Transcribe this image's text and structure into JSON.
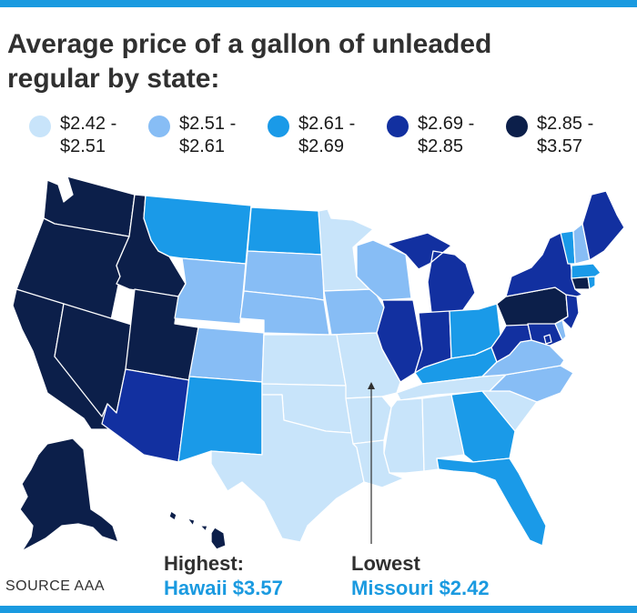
{
  "title": "Average price of a gallon of unleaded regular by state:",
  "legend": [
    {
      "label": "$2.42 - $2.51",
      "color": "#c8e4fa"
    },
    {
      "label": "$2.51 - $2.61",
      "color": "#87bdf5"
    },
    {
      "label": "$2.61 - $2.69",
      "color": "#1a9ae8"
    },
    {
      "label": "$2.69 - $2.85",
      "color": "#1230a0"
    },
    {
      "label": "$2.85 - $3.57",
      "color": "#0c1f4a"
    }
  ],
  "callouts": {
    "highest_label": "Highest:",
    "highest_value": "Hawaii $3.57",
    "lowest_label": "Lowest",
    "lowest_value": "Missouri $2.42"
  },
  "source": "SOURCE AAA",
  "colors": {
    "accent": "#1a9ae0",
    "text": "#303030",
    "border": "#ffffff"
  },
  "state_brackets": {
    "WA": 4,
    "OR": 4,
    "CA": 4,
    "NV": 4,
    "ID": 4,
    "UT": 4,
    "AK": 4,
    "HI": 4,
    "PA": 4,
    "CT": 4,
    "AZ": 3,
    "IL": 3,
    "IN": 3,
    "MI": 3,
    "WV": 3,
    "NY": 3,
    "NJ": 3,
    "MD": 3,
    "ME": 3,
    "DC": 3,
    "MT": 2,
    "ND": 2,
    "NM": 2,
    "KY": 2,
    "OH": 2,
    "GA": 2,
    "FL": 2,
    "VT": 2,
    "MA": 2,
    "RI": 2,
    "WY": 1,
    "CO": 1,
    "SD": 1,
    "NE": 1,
    "IA": 1,
    "WI": 1,
    "VA": 1,
    "NC": 1,
    "NH": 1,
    "DE": 1,
    "MN": 0,
    "KS": 0,
    "OK": 0,
    "TX": 0,
    "MO": 0,
    "AR": 0,
    "LA": 0,
    "MS": 0,
    "AL": 0,
    "TN": 0,
    "SC": 0
  }
}
